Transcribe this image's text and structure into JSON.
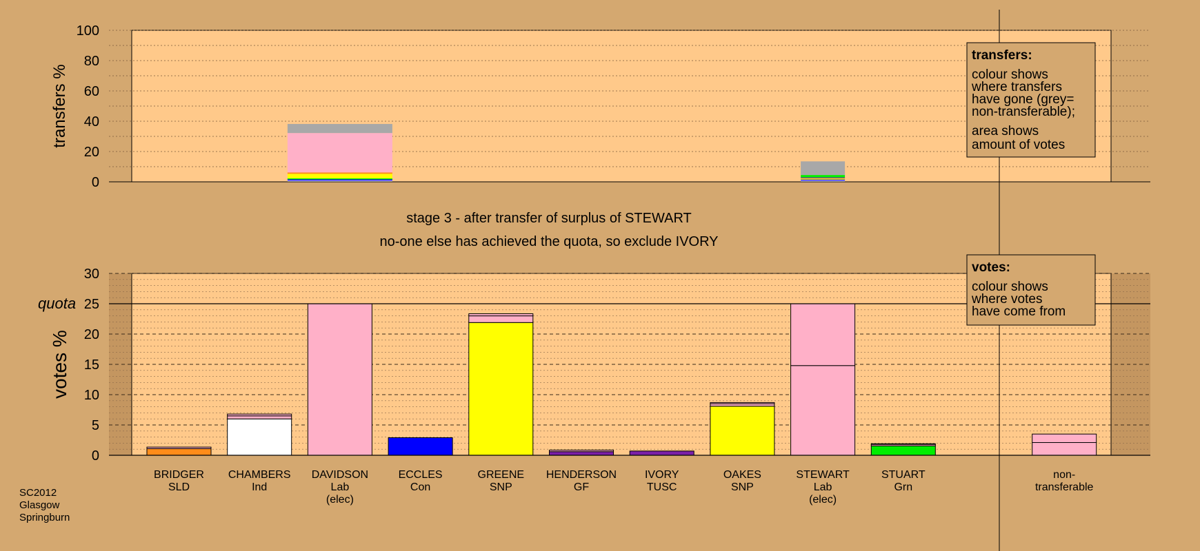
{
  "colors": {
    "page": "#d4a870",
    "plot": "#ffc98a",
    "outside": "#c49660"
  },
  "caption": {
    "line1": "stage 3 - after transfer of surplus of STEWART",
    "line2": "no-one else has achieved the quota, so exclude IVORY"
  },
  "footer": {
    "line1": "SC2012",
    "line2": "Glasgow",
    "line3": "Springburn"
  },
  "legends": {
    "transfers": {
      "title": "transfers:",
      "lines": [
        "colour shows",
        "where transfers",
        "have gone (grey=",
        "non-transferable);"
      ],
      "lines2": [
        "area shows",
        "amount of votes"
      ]
    },
    "votes": {
      "title": "votes:",
      "lines": [
        "colour shows",
        "where votes",
        "have come from"
      ]
    }
  },
  "chart_data": [
    {
      "type": "bar",
      "name": "transfers",
      "ylabel": "transfers %",
      "ylim": [
        0,
        100
      ],
      "yticks": [
        0,
        20,
        40,
        60,
        80,
        100
      ],
      "bars": [
        {
          "candidate": "DAVIDSON",
          "segments": [
            {
              "value": 0.8,
              "color": "#ffffff"
            },
            {
              "value": 0.8,
              "color": "#0000ff"
            },
            {
              "value": 0.7,
              "color": "#00ee00"
            },
            {
              "value": 3.0,
              "color": "#ffff00"
            },
            {
              "value": 0.9,
              "color": "#ff8c1a"
            },
            {
              "value": 26.0,
              "color": "#ffb0c8"
            },
            {
              "value": 6.0,
              "color": "#a8a8a8"
            }
          ]
        },
        {
          "candidate": "STEWART",
          "segments": [
            {
              "value": 0.8,
              "color": "#ffffff"
            },
            {
              "value": 0.7,
              "color": "#0000ff"
            },
            {
              "value": 0.8,
              "color": "#ffff00"
            },
            {
              "value": 0.6,
              "color": "#7a1fa8"
            },
            {
              "value": 1.6,
              "color": "#00ee00"
            },
            {
              "value": 9.0,
              "color": "#a8a8a8"
            }
          ]
        }
      ]
    },
    {
      "type": "bar",
      "name": "votes",
      "ylabel": "votes %",
      "quota_label": "quota",
      "quota": 25,
      "ylim": [
        0,
        30
      ],
      "yticks": [
        0,
        5,
        10,
        15,
        20,
        25,
        30
      ],
      "categories": [
        {
          "name": "BRIDGER",
          "party": "SLD",
          "extra": ""
        },
        {
          "name": "CHAMBERS",
          "party": "Ind",
          "extra": ""
        },
        {
          "name": "DAVIDSON",
          "party": "Lab",
          "extra": "(elec)"
        },
        {
          "name": "ECCLES",
          "party": "Con",
          "extra": ""
        },
        {
          "name": "GREENE",
          "party": "SNP",
          "extra": ""
        },
        {
          "name": "HENDERSON",
          "party": "GF",
          "extra": ""
        },
        {
          "name": "IVORY",
          "party": "TUSC",
          "extra": ""
        },
        {
          "name": "OAKES",
          "party": "SNP",
          "extra": ""
        },
        {
          "name": "STEWART",
          "party": "Lab",
          "extra": "(elec)"
        },
        {
          "name": "STUART",
          "party": "Grn",
          "extra": ""
        },
        {
          "name": "non-",
          "party": "transferable",
          "extra": ""
        }
      ],
      "bars": [
        [
          {
            "value": 1.1,
            "color": "#ff8c1a"
          },
          {
            "value": 0.25,
            "color": "#ffb0c8"
          }
        ],
        [
          {
            "value": 6.0,
            "color": "#ffffff"
          },
          {
            "value": 0.5,
            "color": "#ffb0c8"
          },
          {
            "value": 0.3,
            "color": "#ffb0c8"
          }
        ],
        [
          {
            "value": 25.0,
            "color": "#ffb0c8"
          }
        ],
        [
          {
            "value": 2.9,
            "color": "#0000ff"
          }
        ],
        [
          {
            "value": 21.9,
            "color": "#ffff00"
          },
          {
            "value": 1.1,
            "color": "#ffb0c8"
          },
          {
            "value": 0.35,
            "color": "#ffb0c8"
          }
        ],
        [
          {
            "value": 0.6,
            "color": "#7a1fa8"
          },
          {
            "value": 0.25,
            "color": "#ffb0c8"
          }
        ],
        [
          {
            "value": 0.7,
            "color": "#7a1fa8"
          }
        ],
        [
          {
            "value": 8.1,
            "color": "#ffff00"
          },
          {
            "value": 0.4,
            "color": "#ffb0c8"
          },
          {
            "value": 0.2,
            "color": "#ffb0c8"
          }
        ],
        [
          {
            "value": 14.8,
            "color": "#ffb0c8"
          },
          {
            "value": 10.2,
            "color": "#ffb0c8"
          }
        ],
        [
          {
            "value": 1.55,
            "color": "#00ee00"
          },
          {
            "value": 0.25,
            "color": "#ffb0c8"
          },
          {
            "value": 0.1,
            "color": "#ffff00"
          }
        ],
        null,
        [
          {
            "value": 2.1,
            "color": "#ffb0c8"
          },
          {
            "value": 1.4,
            "color": "#ffb0c8"
          }
        ]
      ]
    }
  ]
}
